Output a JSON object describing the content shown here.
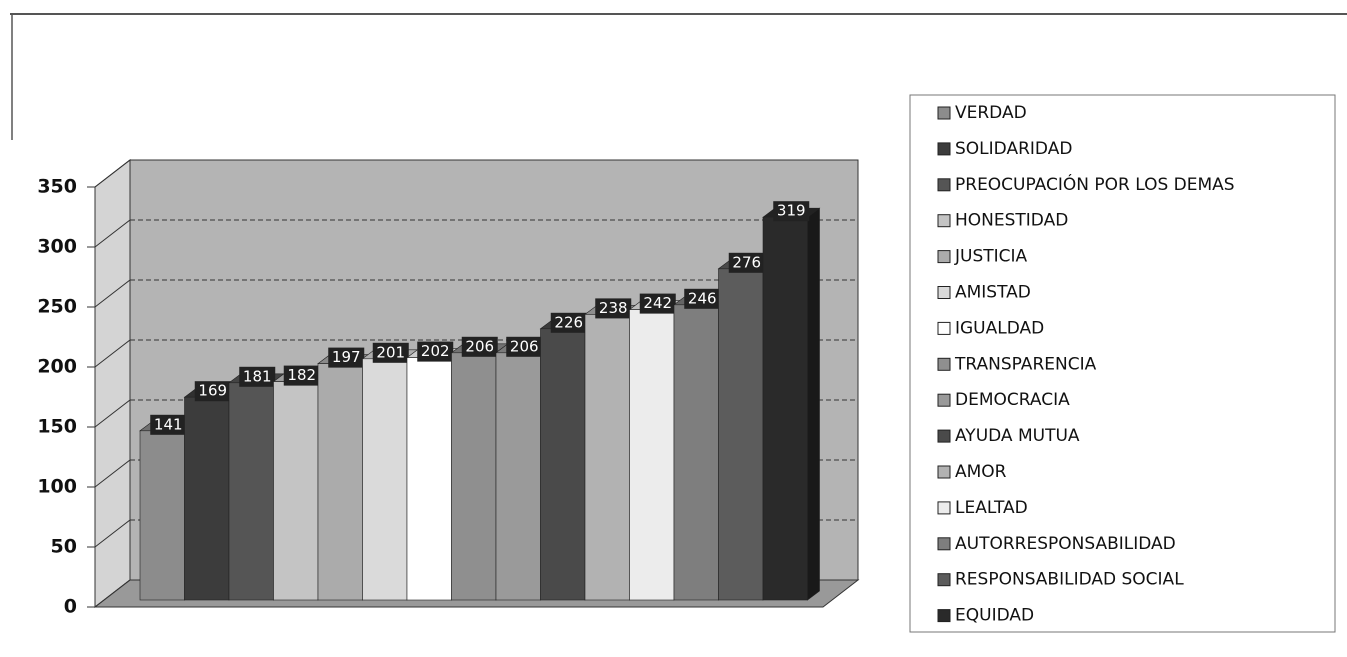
{
  "chart_data": {
    "type": "bar",
    "series": [
      {
        "name": "VERDAD",
        "color": "#8c8c8c",
        "values": [
          141
        ]
      },
      {
        "name": "SOLIDARIDAD",
        "color": "#3c3c3c",
        "values": [
          169
        ]
      },
      {
        "name": "PREOCUPACIÓN POR LOS DEMAS",
        "color": "#555555",
        "values": [
          181
        ]
      },
      {
        "name": "HONESTIDAD",
        "color": "#c4c4c4",
        "values": [
          182
        ]
      },
      {
        "name": "JUSTICIA",
        "color": "#ababab",
        "values": [
          197
        ]
      },
      {
        "name": "AMISTAD",
        "color": "#dadada",
        "values": [
          201
        ]
      },
      {
        "name": "IGUALDAD",
        "color": "#ffffff",
        "values": [
          202
        ]
      },
      {
        "name": "TRANSPARENCIA",
        "color": "#8f8f8f",
        "values": [
          206
        ]
      },
      {
        "name": "DEMOCRACIA",
        "color": "#9a9a9a",
        "values": [
          206
        ]
      },
      {
        "name": "AYUDA MUTUA",
        "color": "#4a4a4a",
        "values": [
          226
        ]
      },
      {
        "name": "AMOR",
        "color": "#b2b2b2",
        "values": [
          238
        ]
      },
      {
        "name": "LEALTAD",
        "color": "#ececec",
        "values": [
          242
        ]
      },
      {
        "name": "AUTORRESPONSABILIDAD",
        "color": "#7e7e7e",
        "values": [
          246
        ]
      },
      {
        "name": "RESPONSABILIDAD SOCIAL",
        "color": "#5c5c5c",
        "values": [
          276
        ]
      },
      {
        "name": "EQUIDAD",
        "color": "#2a2a2a",
        "values": [
          319
        ]
      }
    ],
    "ylim": [
      0,
      350
    ],
    "yticks": [
      0,
      50,
      100,
      150,
      200,
      250,
      300,
      350
    ],
    "grid": true,
    "legend": "right"
  }
}
